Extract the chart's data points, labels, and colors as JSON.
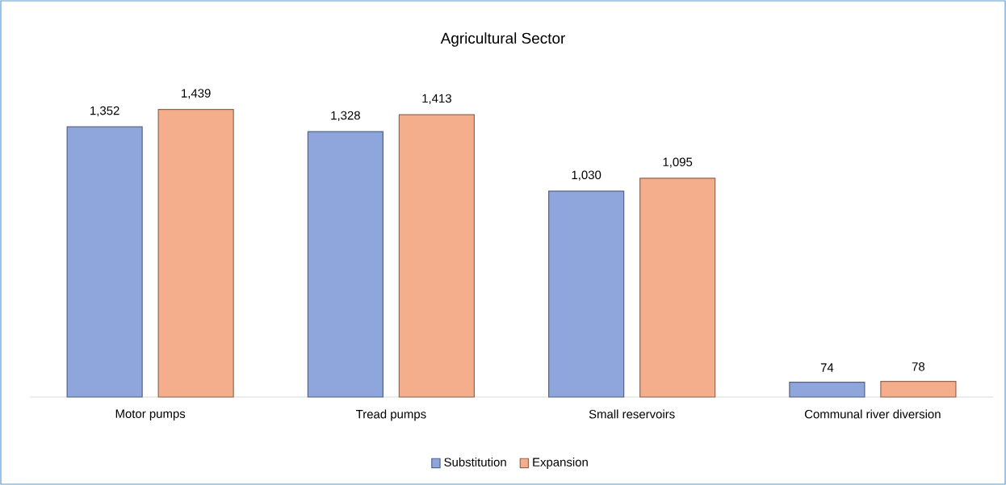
{
  "chart_data": {
    "type": "bar",
    "title": "Agricultural Sector",
    "categories": [
      "Motor pumps",
      "Tread pumps",
      "Small reservoirs",
      "Communal river diversion"
    ],
    "series": [
      {
        "name": "Substitution",
        "color": "#8fa6dc",
        "values": [
          1352,
          1328,
          1030,
          74
        ],
        "value_labels": [
          "1,352",
          "1,328",
          "1,030",
          "74"
        ]
      },
      {
        "name": "Expansion",
        "color": "#f4ae8c",
        "values": [
          1439,
          1413,
          1095,
          78
        ],
        "value_labels": [
          "1,439",
          "1,413",
          "1,095",
          "78"
        ]
      }
    ],
    "legend": "bottom"
  }
}
